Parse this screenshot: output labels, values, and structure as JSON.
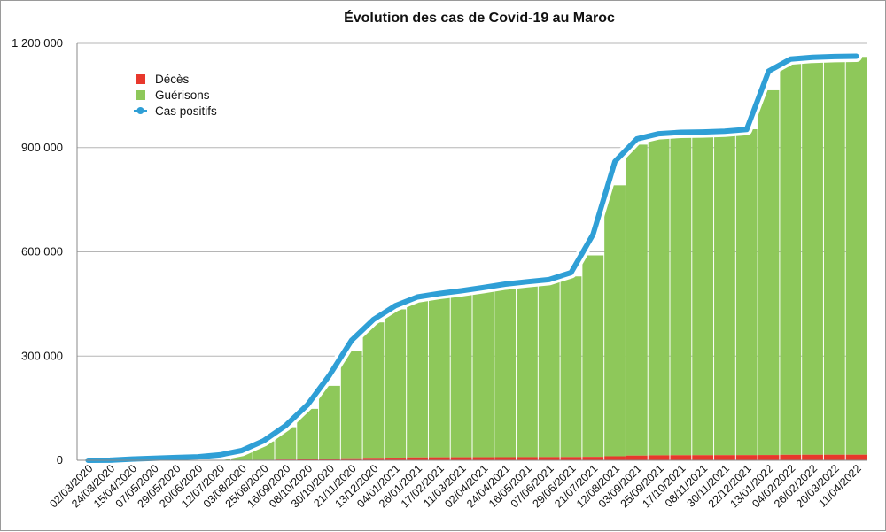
{
  "chart_data": {
    "type": "bar",
    "title": "Évolution des cas de Covid-19 au Maroc",
    "xlabel": "",
    "ylabel": "",
    "ylim": [
      0,
      1200000
    ],
    "grid": true,
    "legend_position": "top-left",
    "y_ticks": [
      "0",
      "300 000",
      "600 000",
      "900 000",
      "1 200 000"
    ],
    "y_tick_values": [
      0,
      300000,
      600000,
      900000,
      1200000
    ],
    "x": [
      "02/03/2020",
      "24/03/2020",
      "15/04/2020",
      "07/05/2020",
      "29/05/2020",
      "20/06/2020",
      "12/07/2020",
      "03/08/2020",
      "25/08/2020",
      "16/09/2020",
      "08/10/2020",
      "30/10/2020",
      "21/11/2020",
      "13/12/2020",
      "04/01/2021",
      "26/01/2021",
      "17/02/2021",
      "11/03/2021",
      "02/04/2021",
      "24/04/2021",
      "16/05/2021",
      "07/06/2021",
      "29/06/2021",
      "21/07/2021",
      "12/08/2021",
      "03/09/2021",
      "25/09/2021",
      "17/10/2021",
      "08/11/2021",
      "30/11/2021",
      "22/12/2021",
      "13/01/2022",
      "04/02/2022",
      "26/02/2022",
      "20/03/2022",
      "11/04/2022"
    ],
    "series": [
      {
        "name": "Décès",
        "color": "#e8382c",
        "kind": "bar",
        "values": [
          0,
          50,
          150,
          190,
          200,
          220,
          240,
          700,
          1400,
          2200,
          3100,
          4300,
          5800,
          6900,
          7500,
          8300,
          8600,
          8700,
          8800,
          8900,
          9100,
          9200,
          9300,
          9800,
          11500,
          13500,
          14300,
          14600,
          14700,
          14800,
          14900,
          15100,
          15800,
          16000,
          16050,
          16070
        ]
      },
      {
        "name": "Guérisons",
        "color": "#8ec85a",
        "kind": "bar",
        "values": [
          0,
          70,
          300,
          2200,
          5500,
          8200,
          10200,
          23000,
          53000,
          93000,
          145000,
          210000,
          310000,
          390000,
          427000,
          453000,
          465000,
          475000,
          485000,
          495000,
          502000,
          508000,
          520000,
          580000,
          780000,
          895000,
          918000,
          925000,
          929000,
          932000,
          938000,
          1050000,
          1135000,
          1142000,
          1143000,
          1145000
        ]
      },
      {
        "name": "Cas positifs",
        "color": "#2f9fd6",
        "kind": "line",
        "values": [
          0,
          300,
          3500,
          5700,
          7900,
          9900,
          15500,
          28000,
          56000,
          100000,
          160000,
          245000,
          345000,
          405000,
          445000,
          470000,
          480000,
          488000,
          497000,
          507000,
          514000,
          520000,
          540000,
          650000,
          860000,
          925000,
          940000,
          944000,
          945000,
          947000,
          952000,
          1120000,
          1155000,
          1160000,
          1162000,
          1163000
        ]
      }
    ]
  }
}
